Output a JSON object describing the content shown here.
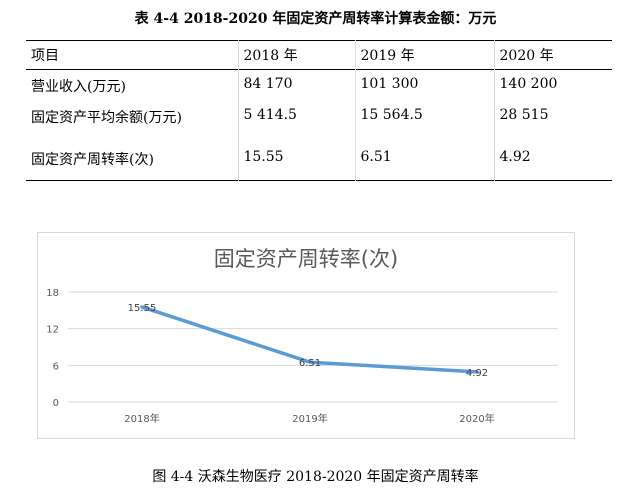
{
  "table_caption": "表 4-4 2018-2020 年固定资产周转率计算表金额：万元",
  "table": {
    "headers": [
      "项目",
      "2018 年",
      "2019 年",
      "2020 年"
    ],
    "rows": [
      [
        "营业收入(万元)",
        "84 170",
        "101 300",
        "140 200"
      ],
      [
        "固定资产平均余额(万元)",
        "5 414.5",
        "15 564.5",
        "28 515"
      ],
      [
        "固定资产周转率(次)",
        "15.55",
        "6.51",
        "4.92"
      ]
    ]
  },
  "chart_data": {
    "type": "line",
    "title": "固定资产周转率(次)",
    "categories": [
      "2018年",
      "2019年",
      "2020年"
    ],
    "values": [
      15.55,
      6.51,
      4.92
    ],
    "data_labels": [
      "15.55",
      "6.51",
      "4.92"
    ],
    "yticks": [
      "18",
      "12",
      "6",
      "0"
    ],
    "ylim": [
      0,
      18
    ],
    "grid": true,
    "line_color": "#5b9bd5",
    "xlabel": "",
    "ylabel": ""
  },
  "figure_caption": "图 4-4 沃森生物医疗 2018-2020 年固定资产周转率"
}
